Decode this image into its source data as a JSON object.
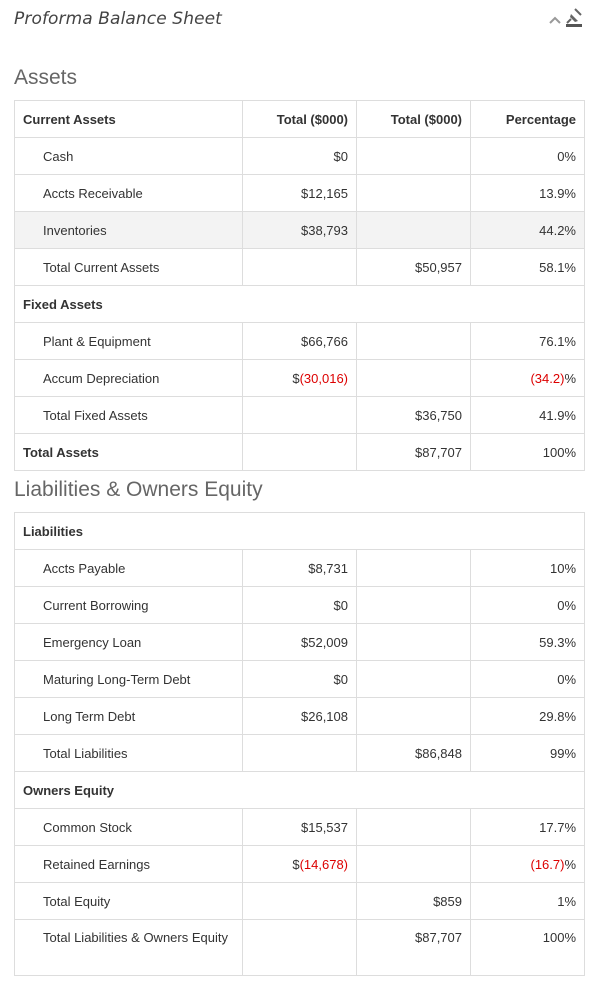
{
  "header": {
    "title": "Proforma Balance Sheet",
    "collapse_icon": "chevron-up-icon",
    "tool_icon": "pin-icon"
  },
  "colors": {
    "negative": "#dd0000",
    "highlight": "#f3f3f3"
  },
  "assets": {
    "title": "Assets",
    "columns": [
      "Current Assets",
      "Total ($000)",
      "Total ($000)",
      "Percentage"
    ],
    "rows": {
      "cash": {
        "label": "Cash",
        "total": "$0",
        "pct": "0%"
      },
      "ar": {
        "label": "Accts Receivable",
        "total": "$12,165",
        "pct": "13.9%"
      },
      "inv": {
        "label": "Inventories",
        "total": "$38,793",
        "pct": "44.2%"
      },
      "tca": {
        "label": "Total Current Assets",
        "sum": "$50,957",
        "pct": "58.1%"
      },
      "fixed_header": "Fixed Assets",
      "pe": {
        "label": "Plant & Equipment",
        "total": "$66,766",
        "pct": "76.1%"
      },
      "ad": {
        "label": "Accum Depreciation",
        "total_prefix": "$",
        "total_neg": "(30,016)",
        "pct_neg": "(34.2)",
        "pct_suffix": "%"
      },
      "tfa": {
        "label": "Total Fixed Assets",
        "sum": "$36,750",
        "pct": "41.9%"
      },
      "ta": {
        "label": "Total Assets",
        "sum": "$87,707",
        "pct": "100%"
      }
    }
  },
  "liabilities": {
    "title": "Liabilities & Owners Equity",
    "liab_header": "Liabilities",
    "rows": {
      "ap": {
        "label": "Accts Payable",
        "total": "$8,731",
        "pct": "10%"
      },
      "cb": {
        "label": "Current Borrowing",
        "total": "$0",
        "pct": "0%"
      },
      "el": {
        "label": "Emergency Loan",
        "total": "$52,009",
        "pct": "59.3%"
      },
      "mltd": {
        "label": "Maturing Long-Term Debt",
        "total": "$0",
        "pct": "0%"
      },
      "ltd": {
        "label": "Long Term Debt",
        "total": "$26,108",
        "pct": "29.8%"
      },
      "tl": {
        "label": "Total Liabilities",
        "sum": "$86,848",
        "pct": "99%"
      },
      "equity_header": "Owners Equity",
      "cs": {
        "label": "Common Stock",
        "total": "$15,537",
        "pct": "17.7%"
      },
      "re": {
        "label": "Retained Earnings",
        "total_prefix": "$",
        "total_neg": "(14,678)",
        "pct_neg": "(16.7)",
        "pct_suffix": "%"
      },
      "te": {
        "label": "Total Equity",
        "sum": "$859",
        "pct": "1%"
      },
      "tloe": {
        "label": "Total Liabilities & Owners Equity",
        "sum": "$87,707",
        "pct": "100%"
      }
    }
  }
}
